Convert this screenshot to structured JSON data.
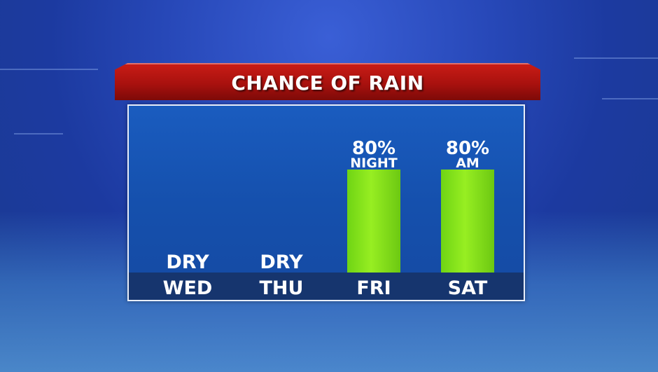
{
  "chart_data": {
    "type": "bar",
    "title": "CHANCE OF RAIN",
    "categories": [
      "WED",
      "THU",
      "FRI",
      "SAT"
    ],
    "values": [
      0,
      0,
      80,
      80
    ],
    "value_labels": [
      "DRY",
      "DRY",
      "80%",
      "80%"
    ],
    "sub_labels": [
      "",
      "",
      "NIGHT",
      "AM"
    ],
    "ylim": [
      0,
      100
    ],
    "grid": false,
    "bar_color": "#8be81e"
  }
}
